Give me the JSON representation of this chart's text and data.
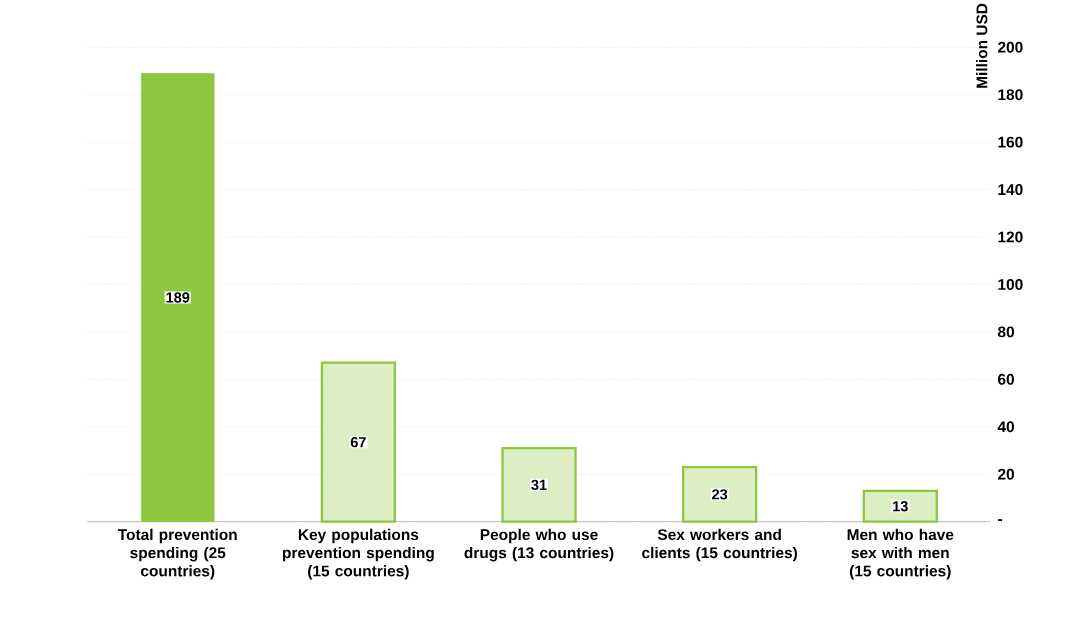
{
  "chart_data": {
    "type": "bar",
    "categories": [
      "Total prevention spending (25 countries)",
      "Key populations prevention spending (15 countries)",
      "People who use drugs (13 countries)",
      "Sex workers and clients (15 countries)",
      "Men who have sex with men (15 countries)"
    ],
    "values": [
      189,
      67,
      31,
      23,
      13
    ],
    "colors": [
      "#8dc63f",
      "#8dc63f",
      "#8dc63f",
      "#8dc63f",
      "#8dc63f"
    ],
    "ylabel": "Million USD",
    "ylim": [
      0,
      200
    ],
    "yticks": [
      {
        "value": 0,
        "label": "-"
      },
      20,
      40,
      60,
      80,
      100,
      120,
      140,
      160,
      180,
      200
    ],
    "grid": "y",
    "data_labels": true
  }
}
